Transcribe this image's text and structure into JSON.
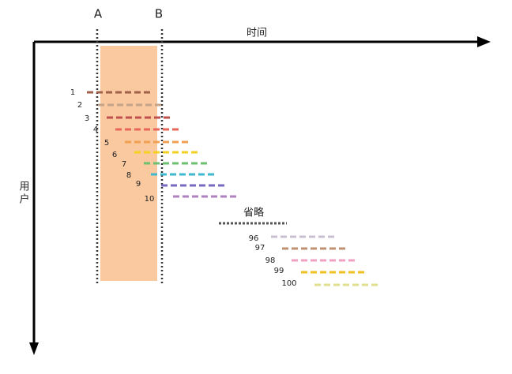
{
  "axes": {
    "x_label": "时间",
    "y_label_top": "用",
    "y_label_bottom": "户"
  },
  "markers": {
    "a": "A",
    "b": "B"
  },
  "rows": [
    1,
    2,
    3,
    4,
    5,
    6,
    7,
    8,
    9,
    10
  ],
  "ellipsis": "省略",
  "tail_rows": [
    96,
    97,
    98,
    99,
    100
  ]
}
